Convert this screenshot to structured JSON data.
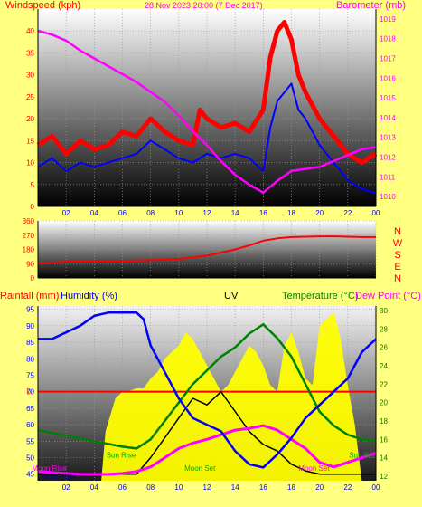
{
  "page": {
    "background": "#ffff80"
  },
  "chart_data": [
    {
      "type": "line",
      "title": "28 Nov 2023 20:00 (7 Dec 2017)",
      "left_axis_label": "Windspeed (kph)",
      "right_axis_label": "Barometer (mb)",
      "x_ticks": [
        "02",
        "04",
        "06",
        "08",
        "10",
        "12",
        "14",
        "16",
        "18",
        "20",
        "22",
        "00"
      ],
      "x_range": [
        0,
        24
      ],
      "left_ticks": [
        0,
        5,
        10,
        15,
        20,
        25,
        30,
        35,
        40
      ],
      "left_range": [
        0,
        45
      ],
      "right_ticks": [
        1010,
        1011,
        1012,
        1013,
        1014,
        1015,
        1016,
        1017,
        1018,
        1019
      ],
      "right_range": [
        1009.5,
        1019.5
      ],
      "colors": {
        "windspeed": "#ff0000",
        "gust": "#ff0000",
        "average": "#0000ff",
        "barometer": "#ff00ff"
      },
      "series": [
        {
          "key": "gust",
          "x": [
            0,
            1,
            2,
            3,
            4,
            5,
            6,
            7,
            7.5,
            8,
            9,
            10,
            11,
            11.5,
            12,
            13,
            14,
            15,
            16,
            16.5,
            17,
            17.5,
            18,
            18.5,
            19,
            20,
            21,
            22,
            23,
            24
          ],
          "values": [
            14,
            16,
            12,
            15,
            13,
            14,
            17,
            16,
            18,
            20,
            17,
            15,
            14,
            22,
            20,
            18,
            19,
            17,
            22,
            34,
            40,
            42,
            38,
            30,
            26,
            20,
            16,
            12,
            10,
            12
          ]
        },
        {
          "key": "average",
          "x": [
            0,
            1,
            2,
            3,
            4,
            5,
            6,
            7,
            8,
            9,
            10,
            11,
            12,
            13,
            14,
            15,
            16,
            16.5,
            17,
            17.5,
            18,
            18.5,
            19,
            20,
            21,
            22,
            23,
            24
          ],
          "values": [
            9,
            11,
            8,
            10,
            9,
            10,
            11,
            12,
            15,
            13,
            11,
            10,
            12,
            11,
            12,
            11,
            8,
            18,
            24,
            26,
            28,
            22,
            20,
            14,
            10,
            6,
            4,
            3
          ]
        },
        {
          "key": "barometer",
          "x": [
            0,
            1,
            2,
            3,
            4,
            5,
            6,
            7,
            8,
            9,
            10,
            11,
            12,
            13,
            14,
            15,
            16,
            17,
            18,
            19,
            20,
            21,
            22,
            23,
            24
          ],
          "values": [
            1018.4,
            1018.2,
            1017.9,
            1017.4,
            1017.0,
            1016.6,
            1016.2,
            1015.8,
            1015.3,
            1014.8,
            1014.1,
            1013.3,
            1012.6,
            1011.8,
            1011.1,
            1010.6,
            1010.2,
            1010.8,
            1011.3,
            1011.4,
            1011.5,
            1011.8,
            1012.1,
            1012.4,
            1012.5
          ]
        }
      ]
    },
    {
      "type": "line",
      "axis_label": "NWSEN",
      "left_ticks": [
        0,
        90,
        180,
        270,
        360
      ],
      "left_range": [
        0,
        360
      ],
      "direction_letters": [
        "N",
        "W",
        "S",
        "E",
        "N"
      ],
      "colors": {
        "direction": "#ff0000"
      },
      "series": [
        {
          "key": "direction",
          "x": [
            0,
            1,
            2,
            3,
            4,
            5,
            6,
            7,
            8,
            9,
            10,
            11,
            12,
            13,
            14,
            15,
            16,
            17,
            18,
            19,
            20,
            21,
            22,
            23,
            24
          ],
          "values": [
            95,
            98,
            102,
            104,
            106,
            107,
            108,
            110,
            112,
            116,
            120,
            130,
            140,
            160,
            180,
            205,
            235,
            250,
            258,
            260,
            262,
            262,
            260,
            258,
            258
          ]
        }
      ]
    },
    {
      "type": "line",
      "rain_label": "Rainfall (mm)",
      "humidity_label": "Humidity (%)",
      "uv_label": "UV",
      "temperature_label": "Temperature (°C)",
      "dewpoint_label": "Dew Point (°C)",
      "left_ticks": [
        45,
        50,
        55,
        60,
        65,
        70,
        75,
        80,
        85,
        90,
        95
      ],
      "left_range": [
        43,
        96
      ],
      "right_ticks": [
        12,
        14,
        16,
        18,
        20,
        22,
        24,
        26,
        28,
        30
      ],
      "right_range": [
        11.5,
        30.5
      ],
      "rain_zero_label": "0",
      "rain_zero_level": 70,
      "annotations": [
        {
          "label": "Sun Rise",
          "x": 5.9,
          "level": 50,
          "color": "#00b000"
        },
        {
          "label": "Sun Set",
          "x": 23.0,
          "level": 50,
          "color": "#00b000"
        },
        {
          "label": "Moon Rise",
          "x": 0.8,
          "level": 46,
          "color": "#ff00ff"
        },
        {
          "label": "Moon Set",
          "x": 11.5,
          "level": 46,
          "color": "#00b000"
        },
        {
          "label": "Moon Set",
          "x": 19.6,
          "level": 46,
          "color": "#ff00ff"
        },
        {
          "label": "Moon Rise",
          "x": 1.5,
          "level": 43.5,
          "color": "#000080"
        }
      ],
      "colors": {
        "humidity": "#0000ff",
        "temperature": "#008000",
        "dewpoint": "#ff00ff",
        "uv_area": "#ffff00",
        "uv_line": "#000000",
        "rain": "#ff0000"
      },
      "series": [
        {
          "key": "humidity",
          "axis": "left",
          "x": [
            0,
            1,
            2,
            3,
            4,
            5,
            6,
            7,
            7.5,
            8,
            9,
            10,
            11,
            12,
            13,
            14,
            15,
            16,
            17,
            18,
            19,
            20,
            21,
            22,
            23,
            24
          ],
          "values": [
            86,
            86,
            88,
            90,
            93,
            94,
            94,
            94,
            92,
            84,
            76,
            68,
            62,
            60,
            58,
            52,
            48,
            47,
            51,
            56,
            62,
            66,
            70,
            74,
            82,
            86
          ]
        },
        {
          "key": "temperature",
          "axis": "right",
          "x": [
            0,
            1,
            2,
            3,
            4,
            5,
            6,
            7,
            8,
            9,
            10,
            11,
            12,
            13,
            14,
            15,
            16,
            17,
            18,
            19,
            20,
            21,
            22,
            23,
            24
          ],
          "values": [
            17,
            16.7,
            16.4,
            16.1,
            15.8,
            15.5,
            15.2,
            15.0,
            16.0,
            18.0,
            20.0,
            22.0,
            23.5,
            25.0,
            26.0,
            27.5,
            28.5,
            27.0,
            25.0,
            22.0,
            19.0,
            17.5,
            16.5,
            16.0,
            15.8
          ]
        },
        {
          "key": "dewpoint",
          "axis": "right",
          "x": [
            0,
            1,
            2,
            3,
            4,
            5,
            6,
            7,
            8,
            9,
            10,
            11,
            12,
            13,
            14,
            15,
            16,
            17,
            18,
            19,
            20,
            21,
            22,
            23,
            24
          ],
          "values": [
            12.5,
            12.4,
            12.3,
            12.2,
            12.2,
            12.2,
            12.3,
            12.5,
            13.0,
            14.0,
            15.0,
            15.6,
            16.0,
            16.5,
            17.0,
            17.2,
            17.5,
            17.0,
            16.0,
            15.0,
            13.5,
            13.0,
            13.5,
            14.0,
            14.5
          ]
        },
        {
          "key": "uv_area",
          "axis": "left",
          "x": [
            0,
            3,
            4.5,
            4.8,
            5.5,
            6,
            6.3,
            7,
            7.5,
            8,
            8.5,
            9,
            9.5,
            10,
            10.5,
            11,
            11.5,
            12,
            12.5,
            13,
            13.5,
            14,
            14.5,
            15,
            15.5,
            16,
            16.5,
            17,
            17.5,
            18,
            18.5,
            19,
            19.5,
            20,
            20.5,
            21,
            21.5,
            22,
            22.5,
            23,
            24
          ],
          "values": [
            43,
            43,
            43,
            58,
            68,
            70,
            70,
            71,
            71,
            74,
            76,
            80,
            82,
            84,
            88,
            86,
            82,
            78,
            74,
            70,
            72,
            76,
            80,
            84,
            82,
            78,
            72,
            70,
            84,
            88,
            82,
            74,
            72,
            90,
            92,
            94,
            86,
            72,
            60,
            43,
            43
          ]
        },
        {
          "key": "uv_line",
          "axis": "left",
          "x": [
            0,
            5,
            6,
            7,
            8,
            9,
            10,
            11,
            12,
            13,
            14,
            15,
            16,
            17,
            18,
            19,
            20,
            24
          ],
          "values": [
            45,
            45,
            45,
            45,
            50,
            56,
            62,
            68,
            66,
            70,
            64,
            58,
            54,
            52,
            48,
            46,
            45,
            45
          ]
        }
      ]
    }
  ]
}
